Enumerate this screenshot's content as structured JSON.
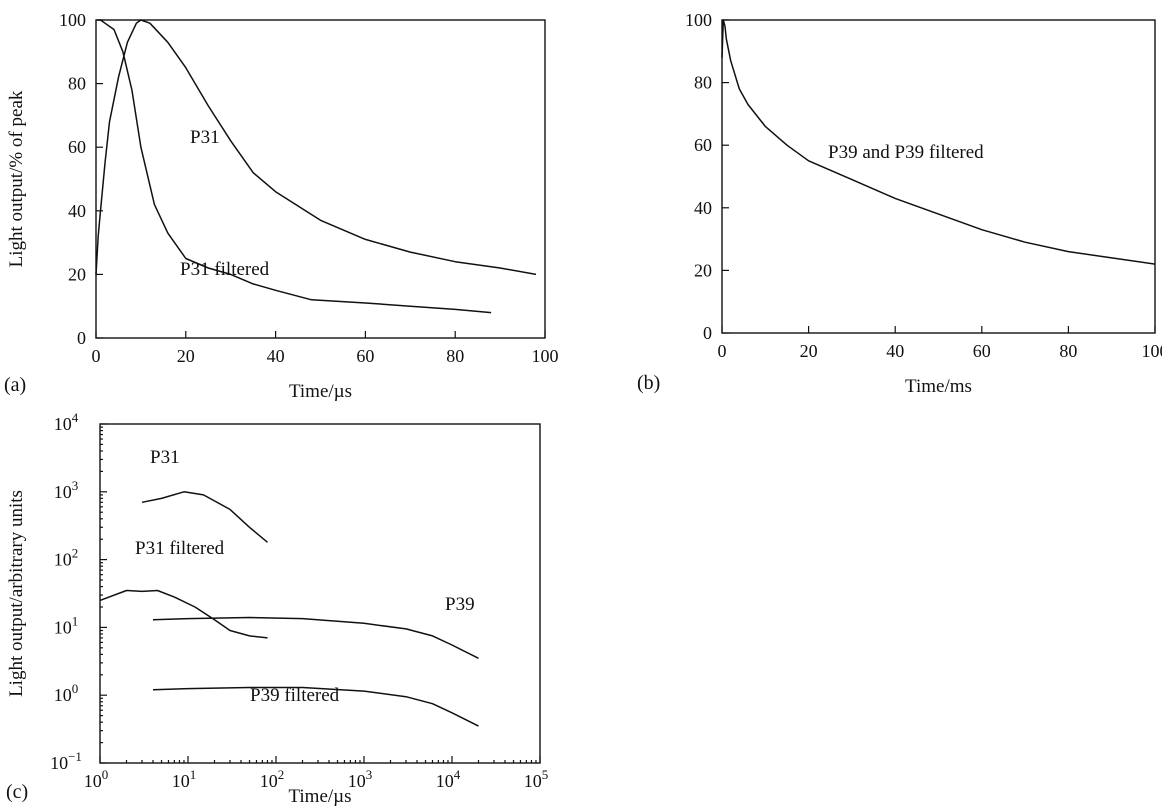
{
  "chart_data": [
    {
      "panel": "(a)",
      "type": "line",
      "xlabel": "Time/µs",
      "ylabel": "Light output/% of peak",
      "xlim": [
        0,
        100
      ],
      "ylim": [
        0,
        100
      ],
      "xticks": [
        0,
        20,
        40,
        60,
        80,
        100
      ],
      "yticks": [
        0,
        20,
        40,
        60,
        80,
        100
      ],
      "grid": false,
      "annotations": [
        "P31",
        "P31 filtered"
      ],
      "series": [
        {
          "name": "P31",
          "x": [
            0,
            0.5,
            1,
            2,
            3,
            5,
            7,
            9,
            10,
            12,
            16,
            20,
            25,
            30,
            35,
            40,
            50,
            60,
            70,
            80,
            90,
            98
          ],
          "y": [
            20,
            32,
            40,
            55,
            68,
            82,
            93,
            99,
            100,
            99,
            93,
            85,
            73,
            62,
            52,
            46,
            37,
            31,
            27,
            24,
            22,
            20
          ]
        },
        {
          "name": "P31 filtered",
          "x": [
            0.3,
            1,
            2,
            4,
            6,
            8,
            10,
            13,
            16,
            20,
            25,
            30,
            35,
            40,
            48,
            60,
            70,
            80,
            88
          ],
          "y": [
            100,
            100,
            99,
            97,
            90,
            78,
            60,
            42,
            33,
            25,
            22,
            20,
            17,
            15,
            12,
            11,
            10,
            9,
            8
          ]
        }
      ]
    },
    {
      "panel": "(b)",
      "type": "line",
      "xlabel": "Time/ms",
      "ylabel": "",
      "xlim": [
        0,
        100
      ],
      "ylim": [
        0,
        100
      ],
      "xticks": [
        0,
        20,
        40,
        60,
        80,
        100
      ],
      "yticks": [
        0,
        20,
        40,
        60,
        80,
        100
      ],
      "grid": false,
      "annotations": [
        "P39 and P39 filtered"
      ],
      "series": [
        {
          "name": "P39 and P39 filtered",
          "x": [
            0,
            0.3,
            0.7,
            1,
            2,
            4,
            6,
            10,
            15,
            20,
            30,
            40,
            50,
            60,
            70,
            80,
            90,
            100
          ],
          "y": [
            88,
            100,
            98,
            94,
            87,
            78,
            73,
            66,
            60,
            55,
            49,
            43,
            38,
            33,
            29,
            26,
            24,
            22
          ]
        }
      ]
    },
    {
      "panel": "(c)",
      "type": "line",
      "xlabel": "Time/µs",
      "ylabel": "Light output/arbitrary units",
      "xscale": "log",
      "yscale": "log",
      "xlim": [
        1,
        100000
      ],
      "ylim": [
        0.1,
        10000
      ],
      "xticks": [
        1,
        10,
        100,
        1000,
        10000,
        100000
      ],
      "xtick_labels": [
        [
          "10",
          "0"
        ],
        [
          "10",
          "1"
        ],
        [
          "10",
          "2"
        ],
        [
          "10",
          "3"
        ],
        [
          "10",
          "4"
        ],
        [
          "10",
          "5"
        ]
      ],
      "yticks": [
        0.1,
        1,
        10,
        100,
        1000,
        10000
      ],
      "ytick_labels": [
        [
          "10",
          "−1"
        ],
        [
          "10",
          "0"
        ],
        [
          "10",
          "1"
        ],
        [
          "10",
          "2"
        ],
        [
          "10",
          "3"
        ],
        [
          "10",
          "4"
        ]
      ],
      "grid": false,
      "annotations": [
        "P31",
        "P31 filtered",
        "P39",
        "P39 filtered"
      ],
      "series": [
        {
          "name": "P31",
          "x": [
            3,
            5,
            9,
            15,
            30,
            50,
            80
          ],
          "y": [
            700,
            800,
            1000,
            900,
            550,
            300,
            180
          ]
        },
        {
          "name": "P31 filtered",
          "x": [
            1,
            2,
            3,
            4.5,
            7,
            12,
            20,
            30,
            50,
            80
          ],
          "y": [
            25,
            35,
            34,
            35,
            28,
            20,
            13,
            9,
            7.5,
            7
          ]
        },
        {
          "name": "P39",
          "x": [
            4,
            10,
            50,
            200,
            1000,
            3000,
            6000,
            10000,
            20000
          ],
          "y": [
            13,
            13.5,
            14,
            13.5,
            11.5,
            9.5,
            7.5,
            5.5,
            3.5
          ]
        },
        {
          "name": "P39 filtered",
          "x": [
            4,
            10,
            50,
            200,
            1000,
            3000,
            6000,
            10000,
            20000
          ],
          "y": [
            1.2,
            1.25,
            1.3,
            1.3,
            1.15,
            0.95,
            0.75,
            0.55,
            0.35
          ]
        }
      ]
    }
  ]
}
